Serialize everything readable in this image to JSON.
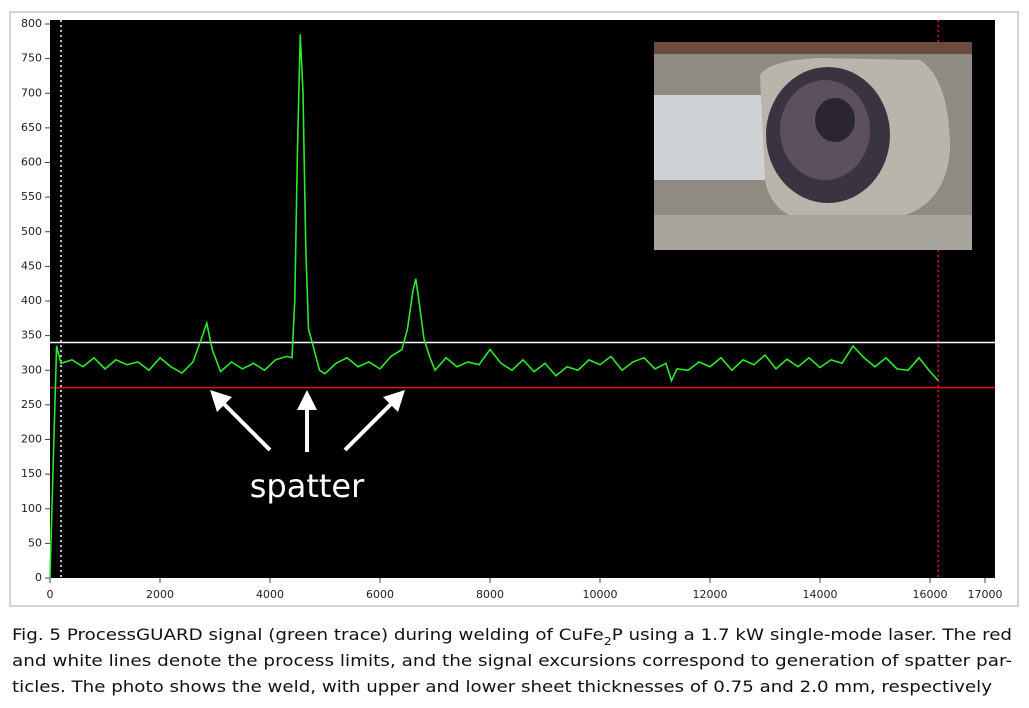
{
  "chart_data": {
    "type": "line",
    "annotation": "spatter",
    "caption": {
      "line1": [
        "Fig. 5  ProcessGUARD signal (green trace) during welding of CuFe",
        "2",
        "P using a 1.7 kW single-mode laser. The red"
      ],
      "line2": "and white lines denote the process limits, and the signal excursions correspond to generation of spatter par-",
      "line3": "ticles. The photo shows the weld, with upper and lower sheet thicknesses of 0.75 and 2.0 mm, respectively"
    },
    "color": "#2ee82e",
    "x": [
      0,
      60,
      120,
      200,
      400,
      600,
      800,
      1000,
      1200,
      1400,
      1600,
      1800,
      2000,
      2200,
      2400,
      2600,
      2750,
      2850,
      2950,
      3100,
      3300,
      3500,
      3700,
      3900,
      4100,
      4300,
      4400,
      4450,
      4500,
      4550,
      4600,
      4650,
      4700,
      4800,
      4900,
      5000,
      5200,
      5400,
      5600,
      5800,
      6000,
      6200,
      6400,
      6500,
      6600,
      6650,
      6700,
      6800,
      6900,
      7000,
      7200,
      7400,
      7600,
      7800,
      8000,
      8200,
      8400,
      8600,
      8800,
      9000,
      9200,
      9400,
      9600,
      9800,
      10000,
      10200,
      10400,
      10600,
      10800,
      11000,
      11200,
      11300,
      11400,
      11600,
      11800,
      12000,
      12200,
      12400,
      12600,
      12800,
      13000,
      13200,
      13400,
      13600,
      13800,
      14000,
      14200,
      14400,
      14600,
      14800,
      15000,
      15200,
      15400,
      15600,
      15800,
      16000,
      16150
    ],
    "values": [
      0,
      170,
      335,
      310,
      315,
      305,
      318,
      302,
      315,
      308,
      312,
      300,
      318,
      305,
      296,
      312,
      345,
      368,
      330,
      298,
      312,
      302,
      310,
      300,
      315,
      320,
      318,
      400,
      620,
      785,
      700,
      480,
      360,
      330,
      300,
      295,
      310,
      318,
      305,
      312,
      302,
      320,
      330,
      360,
      415,
      432,
      405,
      345,
      320,
      300,
      318,
      305,
      312,
      308,
      330,
      310,
      300,
      315,
      298,
      310,
      292,
      305,
      300,
      315,
      308,
      320,
      300,
      312,
      318,
      302,
      310,
      285,
      302,
      300,
      312,
      305,
      318,
      300,
      315,
      308,
      322,
      302,
      316,
      305,
      318,
      304,
      315,
      310,
      335,
      318,
      305,
      318,
      302,
      300,
      318,
      298,
      285
    ],
    "hlines": [
      {
        "value": 340,
        "color": "#ffffff"
      },
      {
        "value": 275,
        "color": "#e01010"
      }
    ],
    "vlines": [
      {
        "value": 200,
        "color": "#ffffff"
      },
      {
        "value": 16150,
        "color": "#e01010"
      }
    ],
    "xlim": [
      0,
      17000
    ],
    "xticks": [
      0,
      2000,
      4000,
      6000,
      8000,
      10000,
      12000,
      14000,
      16000,
      17000
    ],
    "ylim": [
      0,
      800
    ],
    "yticks": [
      0,
      50,
      100,
      150,
      200,
      250,
      300,
      350,
      400,
      450,
      500,
      550,
      600,
      650,
      700,
      750,
      800
    ]
  }
}
